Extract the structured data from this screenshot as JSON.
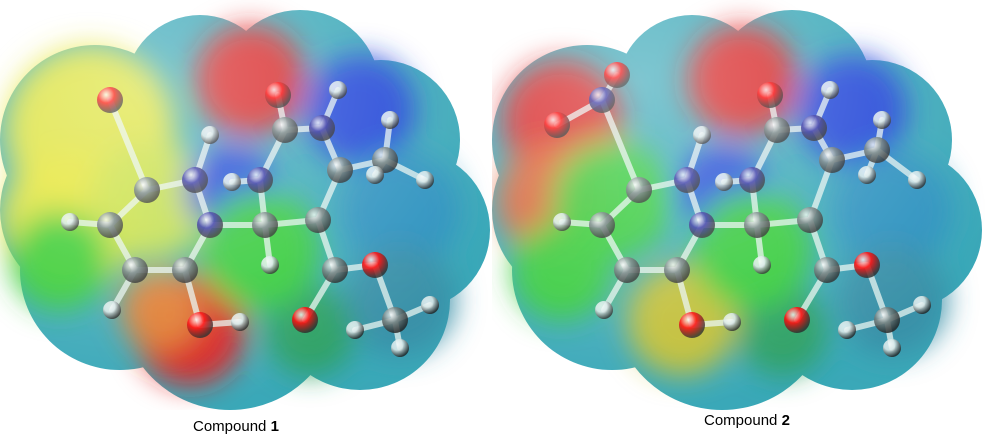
{
  "figure": {
    "compounds": [
      {
        "label": "Compound",
        "number": "1"
      },
      {
        "label": "Compound",
        "number": "2"
      }
    ],
    "colors": {
      "negative": "#e01e1e",
      "neutral": "#33cc33",
      "mid_yellow": "#e6e633",
      "positive": "#1f3fd9",
      "oxygen_atom": "#ff0000",
      "nitrogen_atom": "#2a2aa0",
      "carbon_atom": "#6f7f7f",
      "hydrogen_atom": "#d8e8e8"
    }
  }
}
